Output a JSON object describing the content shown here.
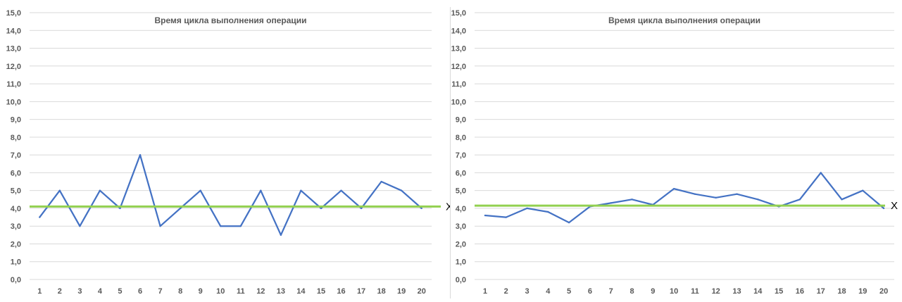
{
  "charts": [
    {
      "chart_data": {
        "type": "line",
        "title": "Время цикла выполнения операции",
        "categories": [
          "1",
          "2",
          "3",
          "4",
          "5",
          "6",
          "7",
          "8",
          "9",
          "10",
          "11",
          "12",
          "13",
          "14",
          "15",
          "16",
          "17",
          "18",
          "19",
          "20"
        ],
        "series": [
          {
            "values": [
              3.5,
              5.0,
              3.0,
              5.0,
              4.0,
              7.0,
              3.0,
              4.0,
              5.0,
              3.0,
              3.0,
              5.0,
              2.5,
              5.0,
              4.0,
              5.0,
              4.0,
              5.5,
              5.0,
              4.0
            ],
            "color": "#4472c4"
          }
        ],
        "reference_line": {
          "value": 4.1,
          "label": "X",
          "color": "#92d050"
        },
        "ylim": [
          0,
          15
        ],
        "y_ticks": [
          "0,0",
          "1,0",
          "2,0",
          "3,0",
          "4,0",
          "5,0",
          "6,0",
          "7,0",
          "8,0",
          "9,0",
          "10,0",
          "11,0",
          "12,0",
          "13,0",
          "14,0",
          "15,0"
        ],
        "grid": true,
        "xlabel": "",
        "ylabel": ""
      }
    },
    {
      "chart_data": {
        "type": "line",
        "title": "Время цикла выполнения операции",
        "categories": [
          "1",
          "2",
          "3",
          "4",
          "5",
          "6",
          "7",
          "8",
          "9",
          "10",
          "11",
          "12",
          "13",
          "14",
          "15",
          "16",
          "17",
          "18",
          "19",
          "20"
        ],
        "series": [
          {
            "values": [
              3.6,
              3.5,
              4.0,
              3.8,
              3.2,
              4.1,
              4.3,
              4.5,
              4.2,
              5.1,
              4.8,
              4.6,
              4.8,
              4.5,
              4.1,
              4.5,
              6.0,
              4.5,
              5.0,
              4.0
            ],
            "color": "#4472c4"
          }
        ],
        "reference_line": {
          "value": 4.15,
          "label": "X",
          "color": "#92d050"
        },
        "ylim": [
          0,
          15
        ],
        "y_ticks": [
          "0,0",
          "1,0",
          "2,0",
          "3,0",
          "4,0",
          "5,0",
          "6,0",
          "7,0",
          "8,0",
          "9,0",
          "10,0",
          "11,0",
          "12,0",
          "13,0",
          "14,0",
          "15,0"
        ],
        "grid": true,
        "xlabel": "",
        "ylabel": ""
      }
    }
  ]
}
